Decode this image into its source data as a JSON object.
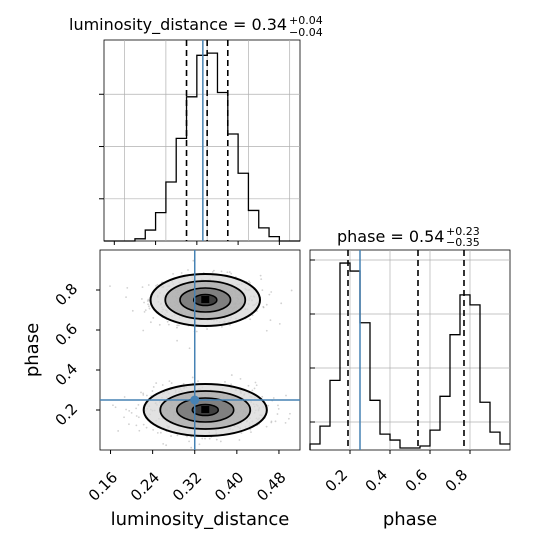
{
  "chart_data": {
    "type": "corner",
    "parameters": [
      "luminosity_distance",
      "phase"
    ],
    "colors": {
      "truth": "#4682b4",
      "hist": "#000000",
      "grid": "#b0b0b0"
    },
    "grid": true,
    "panels": [
      {
        "id": "hist-luminosity",
        "type": "histogram",
        "title_main": "luminosity_distance = 0.34",
        "title_sup": "+0.04",
        "title_sub": "−0.04",
        "xlim": [
          0.14,
          0.52
        ],
        "bin_edges": [
          0.14,
          0.16,
          0.18,
          0.2,
          0.22,
          0.24,
          0.26,
          0.28,
          0.3,
          0.32,
          0.34,
          0.36,
          0.38,
          0.4,
          0.42,
          0.44,
          0.46,
          0.48,
          0.5,
          0.52
        ],
        "counts": [
          0,
          0,
          0,
          1,
          5,
          13,
          27,
          47,
          66,
          85,
          86,
          68,
          49,
          31,
          14,
          6,
          2,
          0,
          0
        ],
        "quantiles": [
          0.3,
          0.34,
          0.38
        ],
        "truth": 0.32
      },
      {
        "id": "hist-phase",
        "type": "histogram",
        "title_main": "phase = 0.54",
        "title_sup": "+0.23",
        "title_sub": "−0.35",
        "xlim": [
          0.0,
          1.0
        ],
        "xticks": [
          "0.2",
          "0.4",
          "0.6",
          "0.8"
        ],
        "bin_edges": [
          0.0,
          0.05,
          0.1,
          0.15,
          0.2,
          0.25,
          0.3,
          0.35,
          0.4,
          0.45,
          0.5,
          0.55,
          0.6,
          0.65,
          0.7,
          0.75,
          0.8,
          0.85,
          0.9,
          0.95,
          1.0
        ],
        "counts": [
          3,
          12,
          35,
          94,
          90,
          64,
          25,
          8,
          5,
          1,
          1,
          2,
          10,
          27,
          58,
          78,
          73,
          24,
          9,
          3
        ],
        "quantiles": [
          0.19,
          0.54,
          0.77
        ],
        "truth": 0.25
      },
      {
        "id": "joint",
        "type": "contour",
        "xlabel": "luminosity_distance",
        "ylabel": "phase",
        "xlim": [
          0.14,
          0.52
        ],
        "ylim": [
          0.0,
          1.0
        ],
        "xticks": [
          "0.16",
          "0.24",
          "0.32",
          "0.40",
          "0.48"
        ],
        "yticks": [
          "0.2",
          "0.4",
          "0.6",
          "0.8"
        ],
        "modes": [
          {
            "center": [
              0.34,
              0.75
            ],
            "sigma": [
              0.04,
              0.05
            ],
            "weight": 0.5
          },
          {
            "center": [
              0.34,
              0.2
            ],
            "sigma": [
              0.045,
              0.05
            ],
            "weight": 0.5
          }
        ],
        "truth": [
          0.32,
          0.25
        ]
      }
    ]
  }
}
